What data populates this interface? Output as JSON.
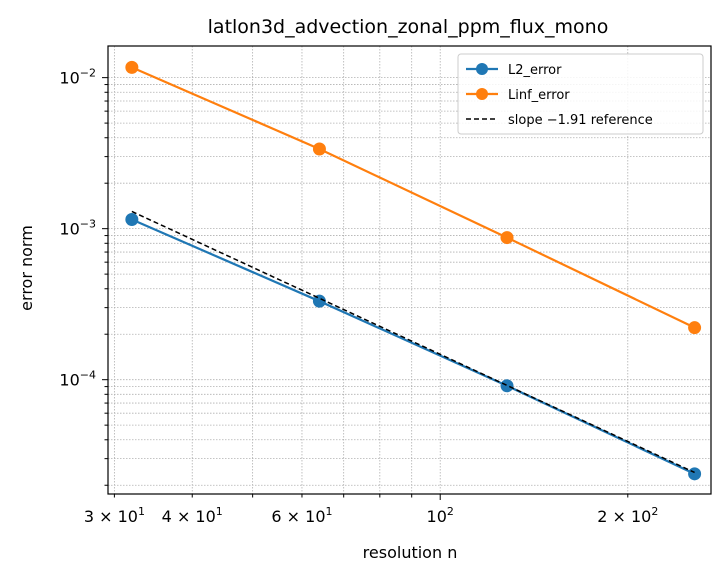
{
  "chart_data": {
    "type": "line",
    "title": "latlon3d_advection_zonal_ppm_flux_mono",
    "xlabel": "resolution n",
    "ylabel": "error norm",
    "xscale": "log",
    "yscale": "log",
    "xlim": [
      29.3,
      272
    ],
    "ylim": [
      1.75e-05,
      0.0162
    ],
    "grid": true,
    "legend_position": "top-right",
    "x": [
      32,
      64,
      128,
      256
    ],
    "series": [
      {
        "name": "L2_error",
        "color": "#1f77b4",
        "marker": "circle",
        "style": "solid",
        "values": [
          0.00115,
          0.000331,
          9.11e-05,
          2.38e-05
        ]
      },
      {
        "name": "Linf_error",
        "color": "#ff7f0e",
        "marker": "circle",
        "style": "solid",
        "values": [
          0.0117,
          0.00337,
          0.000873,
          0.000221
        ]
      },
      {
        "name": "slope −1.91 reference",
        "color": "#000000",
        "marker": "none",
        "style": "dashed",
        "values": [
          0.0013,
          0.000346,
          9.17e-05,
          2.43e-05
        ]
      }
    ],
    "x_ticks": [
      {
        "value": 30,
        "base": "3 × 10",
        "exp": "1"
      },
      {
        "value": 40,
        "base": "4 × 10",
        "exp": "1"
      },
      {
        "value": 60,
        "base": "6 × 10",
        "exp": "1"
      },
      {
        "value": 100,
        "base": "10",
        "exp": "2"
      },
      {
        "value": 200,
        "base": "2 × 10",
        "exp": "2"
      }
    ],
    "y_ticks": [
      {
        "value": 0.0001,
        "base": "10",
        "exp": "−4"
      },
      {
        "value": 0.001,
        "base": "10",
        "exp": "−3"
      },
      {
        "value": 0.01,
        "base": "10",
        "exp": "−2"
      }
    ]
  }
}
